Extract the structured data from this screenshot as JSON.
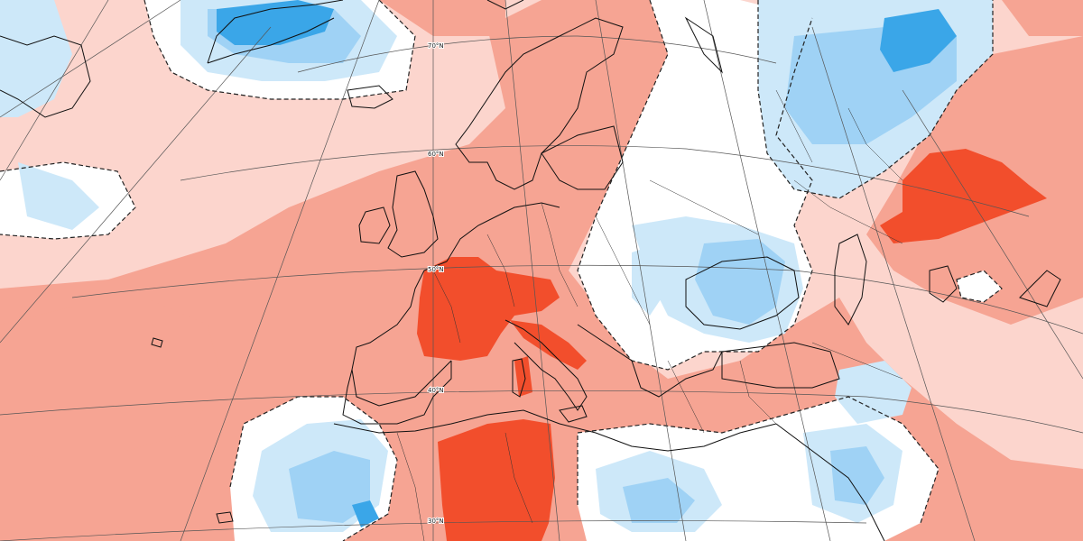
{
  "map": {
    "lat_labels": {
      "lat70": "70°N",
      "lat60": "60°N",
      "lat50": "50°N",
      "lat40": "40°N",
      "lat30": "30°N"
    },
    "colors": {
      "background": "#ffffff",
      "anomaly_warm_light": "#fcd5cd",
      "anomaly_warm_mid": "#f6a493",
      "anomaly_warm_strong": "#f24e2c",
      "anomaly_cool_light": "#cde8f9",
      "anomaly_cool_mid": "#9fd2f5",
      "anomaly_cool_strong": "#3aa6e8",
      "coastline": "#111111",
      "graticule": "#555555",
      "zero_contour": "#222222"
    }
  }
}
